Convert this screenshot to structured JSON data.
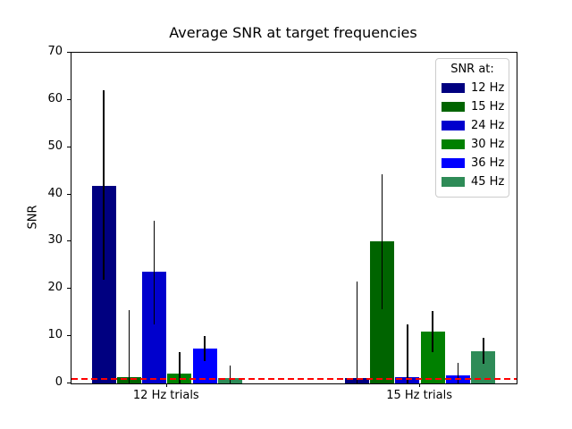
{
  "title": "Average SNR at target frequencies",
  "ylabel": "SNR",
  "legend": {
    "title": "SNR at:",
    "entries": [
      {
        "label": "12 Hz",
        "color": "#000080"
      },
      {
        "label": "15 Hz",
        "color": "#006400"
      },
      {
        "label": "24 Hz",
        "color": "#0000CD"
      },
      {
        "label": "30 Hz",
        "color": "#008000"
      },
      {
        "label": "36 Hz",
        "color": "#0000FF"
      },
      {
        "label": "45 Hz",
        "color": "#2E8B57"
      }
    ]
  },
  "chart_data": {
    "type": "bar",
    "title": "Average SNR at target frequencies",
    "xlabel": "",
    "ylabel": "SNR",
    "categories": [
      "12 Hz trials",
      "15 Hz trials"
    ],
    "ylim": [
      0,
      70
    ],
    "yticks": [
      0,
      10,
      20,
      30,
      40,
      50,
      60,
      70
    ],
    "grid": false,
    "legend_title": "SNR at:",
    "legend_position": "upper right",
    "series": [
      {
        "name": "12 Hz",
        "color": "#000080",
        "values": [
          41.9,
          1.2
        ],
        "err_low": [
          22.0,
          0
        ],
        "err_high": [
          62.0,
          21.6
        ]
      },
      {
        "name": "15 Hz",
        "color": "#006400",
        "values": [
          1.3,
          30.0
        ],
        "err_low": [
          0,
          15.7
        ],
        "err_high": [
          15.5,
          44.3
        ]
      },
      {
        "name": "24 Hz",
        "color": "#0000CD",
        "values": [
          23.6,
          1.4
        ],
        "err_low": [
          12.5,
          0
        ],
        "err_high": [
          34.5,
          12.5
        ]
      },
      {
        "name": "30 Hz",
        "color": "#008000",
        "values": [
          2.0,
          11.0
        ],
        "err_low": [
          0,
          6.7
        ],
        "err_high": [
          6.6,
          15.4
        ]
      },
      {
        "name": "36 Hz",
        "color": "#0000FF",
        "values": [
          7.3,
          1.7
        ],
        "err_low": [
          4.7,
          0
        ],
        "err_high": [
          10.0,
          4.4
        ]
      },
      {
        "name": "45 Hz",
        "color": "#2E8B57",
        "values": [
          1.1,
          6.9
        ],
        "err_low": [
          0,
          4.2
        ],
        "err_high": [
          3.8,
          9.7
        ]
      }
    ],
    "threshold_line": {
      "y": 1,
      "color": "#ff0000",
      "style": "dashed"
    }
  }
}
